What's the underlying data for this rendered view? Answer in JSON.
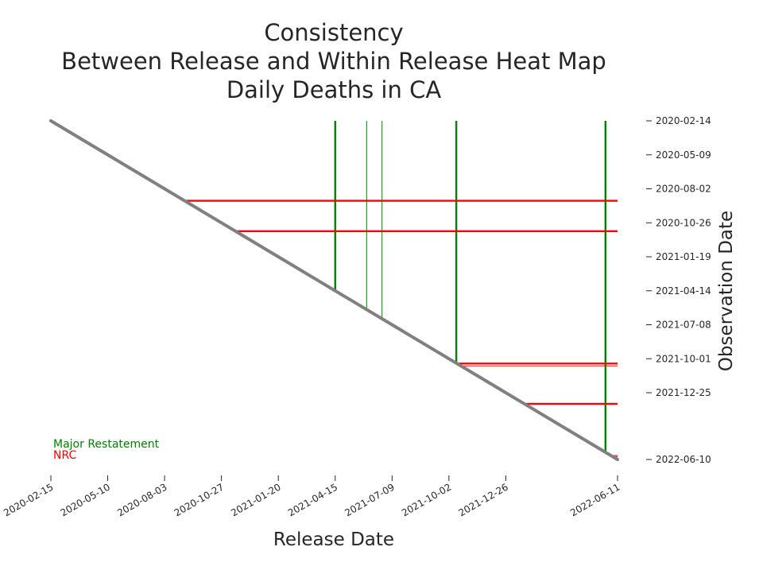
{
  "colors": {
    "background": "#ffffff",
    "text": "#262626",
    "diagonal": "#808080",
    "major_restatement": "#008000",
    "nrc": "#ff0000"
  },
  "chart_data": {
    "type": "line",
    "title": [
      "Consistency",
      "Between Release and Within Release Heat Map",
      "Daily Deaths in CA"
    ],
    "xlabel": "Release Date",
    "ylabel": "Observation Date",
    "x_axis": {
      "kind": "date",
      "ticks": [
        "2020-02-15",
        "2020-05-10",
        "2020-08-03",
        "2020-10-27",
        "2021-01-20",
        "2021-04-15",
        "2021-07-09",
        "2021-10-02",
        "2021-12-26",
        "2022-06-11"
      ],
      "range": [
        "2020-02-15",
        "2022-06-11"
      ]
    },
    "y_axis": {
      "kind": "date",
      "position": "right",
      "inverted": true,
      "ticks": [
        "2020-02-14",
        "2020-05-09",
        "2020-08-02",
        "2020-10-26",
        "2021-01-19",
        "2021-04-14",
        "2021-07-08",
        "2021-10-01",
        "2021-12-25",
        "2022-06-10"
      ],
      "range": [
        "2020-02-14",
        "2022-06-10"
      ]
    },
    "grid": false,
    "legend": {
      "placement": "lower-left",
      "entries": [
        {
          "label": "Major Restatement",
          "color": "#008000"
        },
        {
          "label": "NRC",
          "color": "#ff0000"
        }
      ]
    },
    "diagonal": {
      "color": "#808080",
      "start": [
        "2020-02-15",
        "2020-02-14"
      ],
      "end": [
        "2022-06-11",
        "2022-06-10"
      ]
    },
    "major_restatements": [
      {
        "release_date": "2021-04-15",
        "thick": true
      },
      {
        "release_date": "2021-06-01",
        "thick": false
      },
      {
        "release_date": "2021-06-24",
        "thick": false
      },
      {
        "release_date": "2021-10-13",
        "thick": true
      },
      {
        "release_date": "2022-05-24",
        "thick": true
      }
    ],
    "nrc_lines": [
      {
        "observation_date": "2020-09-01",
        "from_release": "2020-09-02",
        "to_release": "2022-06-11",
        "thick": true
      },
      {
        "observation_date": "2020-11-16",
        "from_release": "2020-11-17",
        "to_release": "2022-06-11",
        "thick": true
      },
      {
        "observation_date": "2021-10-13",
        "from_release": "2021-10-14",
        "to_release": "2022-06-11",
        "thick": true
      },
      {
        "observation_date": "2021-10-19",
        "from_release": "2021-10-20",
        "to_release": "2022-06-11",
        "thick": false
      },
      {
        "observation_date": "2022-01-22",
        "from_release": "2022-01-23",
        "to_release": "2022-06-11",
        "thick": true
      },
      {
        "observation_date": "2022-05-31",
        "from_release": "2022-06-01",
        "to_release": "2022-06-11",
        "thick": false
      },
      {
        "observation_date": "2022-06-03",
        "from_release": "2022-06-04",
        "to_release": "2022-06-11",
        "thick": false
      }
    ]
  }
}
